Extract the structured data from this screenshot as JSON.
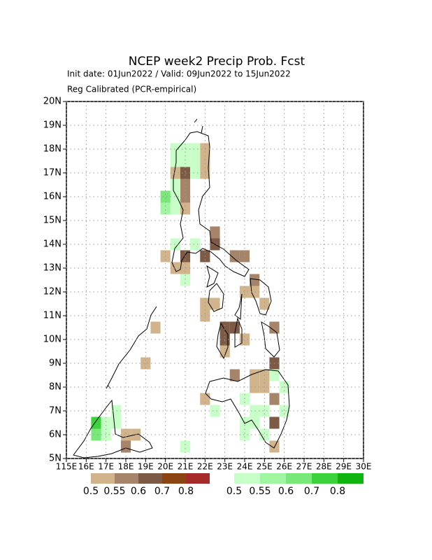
{
  "chart_data": {
    "type": "map",
    "title": "NCEP week2 Precip Prob. Fcst",
    "subtitle": "Init date: 01Jun2022 / Valid: 09Jun2022 to 15Jun2022",
    "subtitle2": "Reg Calibrated (PCR-empirical)",
    "xlim": [
      115,
      130
    ],
    "ylim": [
      5,
      20
    ],
    "xticks": [
      {
        "value": 115,
        "label": "115E"
      },
      {
        "value": 116,
        "label": "16E"
      },
      {
        "value": 117,
        "label": "17E"
      },
      {
        "value": 118,
        "label": "18E"
      },
      {
        "value": 119,
        "label": "19E"
      },
      {
        "value": 120,
        "label": "20E"
      },
      {
        "value": 121,
        "label": "21E"
      },
      {
        "value": 122,
        "label": "22E"
      },
      {
        "value": 123,
        "label": "23E"
      },
      {
        "value": 124,
        "label": "24E"
      },
      {
        "value": 125,
        "label": "25E"
      },
      {
        "value": 126,
        "label": "26E"
      },
      {
        "value": 127,
        "label": "27E"
      },
      {
        "value": 128,
        "label": "28E"
      },
      {
        "value": 129,
        "label": "29E"
      },
      {
        "value": 130,
        "label": "30E"
      }
    ],
    "yticks": [
      {
        "value": 5,
        "label": "5N"
      },
      {
        "value": 6,
        "label": "6N"
      },
      {
        "value": 7,
        "label": "7N"
      },
      {
        "value": 8,
        "label": "8N"
      },
      {
        "value": 9,
        "label": "9N"
      },
      {
        "value": 10,
        "label": "10N"
      },
      {
        "value": 11,
        "label": "11N"
      },
      {
        "value": 12,
        "label": "12N"
      },
      {
        "value": 13,
        "label": "13N"
      },
      {
        "value": 14,
        "label": "14N"
      },
      {
        "value": 15,
        "label": "15N"
      },
      {
        "value": 16,
        "label": "16N"
      },
      {
        "value": 17,
        "label": "17N"
      },
      {
        "value": 18,
        "label": "18N"
      },
      {
        "value": 19,
        "label": "19N"
      },
      {
        "value": 20,
        "label": "20N"
      }
    ],
    "grid": true,
    "series": [
      {
        "levels": [
          0.5,
          0.55,
          0.6,
          0.7,
          0.8
        ],
        "colors": [
          "#d2b48c",
          "#a68469",
          "#7d5a45",
          "#8b4513",
          "#a52a2a"
        ],
        "cells": [
          [
            121.75,
            17.75,
            0.5
          ],
          [
            121.75,
            17.25,
            0.5
          ],
          [
            121.75,
            16.75,
            0.5
          ],
          [
            120.25,
            16.75,
            0.5
          ],
          [
            120.75,
            15.25,
            0.5
          ],
          [
            119.75,
            13.25,
            0.5
          ],
          [
            120.25,
            12.75,
            0.5
          ],
          [
            120.75,
            12.75,
            0.5
          ],
          [
            121.75,
            11.25,
            0.5
          ],
          [
            122.25,
            11.25,
            0.5
          ],
          [
            121.75,
            10.75,
            0.5
          ],
          [
            122.75,
            9.25,
            0.5
          ],
          [
            123.75,
            9.75,
            0.5
          ],
          [
            123.75,
            11.75,
            0.5
          ],
          [
            124.25,
            11.75,
            0.5
          ],
          [
            124.75,
            11.25,
            0.5
          ],
          [
            124.75,
            8.25,
            0.5
          ],
          [
            124.25,
            8.25,
            0.5
          ],
          [
            124.25,
            7.75,
            0.5
          ],
          [
            124.75,
            7.75,
            0.5
          ],
          [
            121.75,
            7.25,
            0.5
          ],
          [
            125.25,
            5.25,
            0.5
          ],
          [
            118.25,
            5.75,
            0.5
          ],
          [
            117.75,
            5.75,
            0.5
          ],
          [
            118.75,
            8.75,
            0.5
          ],
          [
            119.25,
            10.25,
            0.5
          ],
          [
            120.75,
            15.75,
            0.55
          ],
          [
            120.75,
            16.25,
            0.55
          ],
          [
            122.25,
            14.25,
            0.55
          ],
          [
            123.25,
            13.25,
            0.55
          ],
          [
            123.75,
            13.25,
            0.55
          ],
          [
            124.25,
            12.25,
            0.55
          ],
          [
            125.25,
            10.25,
            0.55
          ],
          [
            123.25,
            8.25,
            0.55
          ],
          [
            117.75,
            5.25,
            0.55
          ],
          [
            125.25,
            7.25,
            0.55
          ],
          [
            120.75,
            16.75,
            0.6
          ],
          [
            120.75,
            13.25,
            0.6
          ],
          [
            122.25,
            13.75,
            0.6
          ],
          [
            121.75,
            13.25,
            0.6
          ],
          [
            123.25,
            10.25,
            0.6
          ],
          [
            122.75,
            9.75,
            0.6
          ],
          [
            125.25,
            6.25,
            0.6
          ],
          [
            125.25,
            8.75,
            0.6
          ],
          [
            122.75,
            10.25,
            0.6
          ]
        ]
      },
      {
        "levels": [
          0.5,
          0.55,
          0.6,
          0.7,
          0.8
        ],
        "colors": [
          "#c8ffc8",
          "#a0f5a0",
          "#78e878",
          "#3cd23c",
          "#10b410"
        ],
        "cells": [
          [
            120.25,
            17.75,
            0.5
          ],
          [
            120.75,
            17.75,
            0.5
          ],
          [
            121.25,
            17.75,
            0.5
          ],
          [
            120.25,
            17.25,
            0.5
          ],
          [
            120.75,
            17.25,
            0.5
          ],
          [
            121.25,
            17.25,
            0.5
          ],
          [
            121.25,
            16.75,
            0.5
          ],
          [
            120.25,
            16.25,
            0.5
          ],
          [
            120.25,
            15.75,
            0.5
          ],
          [
            120.25,
            15.25,
            0.5
          ],
          [
            120.25,
            13.75,
            0.5
          ],
          [
            121.25,
            13.75,
            0.5
          ],
          [
            120.75,
            12.25,
            0.5
          ],
          [
            123.75,
            7.25,
            0.5
          ],
          [
            124.25,
            6.75,
            0.5
          ],
          [
            124.75,
            6.75,
            0.5
          ],
          [
            123.75,
            6.25,
            0.5
          ],
          [
            124.25,
            6.25,
            0.5
          ],
          [
            124.75,
            5.75,
            0.5
          ],
          [
            123.75,
            5.75,
            0.5
          ],
          [
            125.75,
            6.75,
            0.5
          ],
          [
            125.25,
            8.25,
            0.5
          ],
          [
            125.75,
            7.75,
            0.5
          ],
          [
            122.25,
            6.75,
            0.5
          ],
          [
            116.75,
            6.25,
            0.5
          ],
          [
            117.25,
            6.25,
            0.5
          ],
          [
            116.75,
            5.75,
            0.5
          ],
          [
            117.25,
            6.75,
            0.5
          ],
          [
            120.75,
            5.25,
            0.5
          ],
          [
            119.75,
            15.25,
            0.55
          ],
          [
            119.75,
            15.75,
            0.6
          ],
          [
            116.25,
            5.75,
            0.6
          ],
          [
            116.25,
            6.25,
            0.7
          ]
        ]
      }
    ]
  }
}
